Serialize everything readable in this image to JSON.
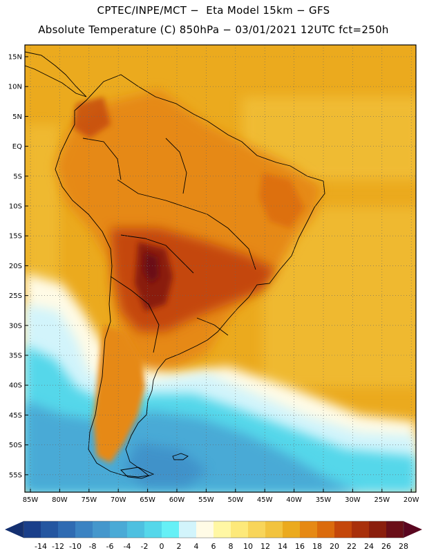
{
  "header": {
    "line1": "CPTEC/INPE/MCT −  Eta Model 15km − GFS",
    "line2": "Absolute Temperature (C) 850hPa − 03/01/2021 12UTC fct=250h"
  },
  "map": {
    "lat_labels": [
      "15N",
      "10N",
      "5N",
      "EQ",
      "5S",
      "10S",
      "15S",
      "20S",
      "25S",
      "30S",
      "35S",
      "40S",
      "45S",
      "50S",
      "55S"
    ],
    "lon_labels": [
      "85W",
      "80W",
      "75W",
      "70W",
      "65W",
      "60W",
      "55W",
      "50W",
      "45W",
      "40W",
      "35W",
      "30W",
      "25W",
      "20W"
    ]
  },
  "colorbar": {
    "labels": [
      "-14",
      "-12",
      "-10",
      "-8",
      "-6",
      "-4",
      "-2",
      "0",
      "2",
      "4",
      "6",
      "8",
      "10",
      "12",
      "14",
      "16",
      "18",
      "20",
      "22",
      "24",
      "26",
      "28"
    ],
    "colors": [
      "#1a3f8a",
      "#2456a0",
      "#2f6bb2",
      "#3b83c2",
      "#4597cc",
      "#4aaad6",
      "#4ec0e0",
      "#55d7ea",
      "#66f0f6",
      "#d2f4fb",
      "#fffbe6",
      "#fff7a4",
      "#fde97a",
      "#f8d55a",
      "#f2c33e",
      "#ebaa1e",
      "#e68914",
      "#db6b0c",
      "#c4470a",
      "#a8300b",
      "#8a1f0d",
      "#6a0f18"
    ],
    "left_arrow_color": "#143070",
    "right_arrow_color": "#5a0620"
  },
  "palette": {
    "ocean_warm": "#ebaa1e",
    "land_hot": "#c4470a",
    "land_very_hot": "#8a1f0d",
    "land_extreme": "#6a0f18",
    "cool_cream": "#fffbe6",
    "cold_light": "#d2f4fb",
    "cold_cyan": "#55d7ea",
    "cold_blue": "#4aaad6",
    "cold_deep": "#3b83c2"
  }
}
